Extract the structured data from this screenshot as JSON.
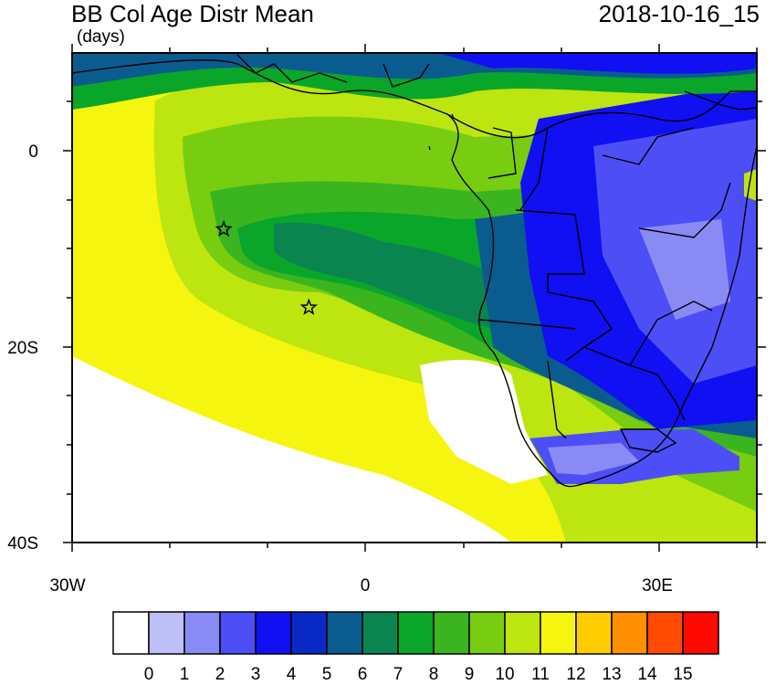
{
  "header": {
    "title": "BB Col Age Distr Mean",
    "units": "(days)",
    "datetime": "2018-10-16_15"
  },
  "axes": {
    "x_ticks": [
      "30W",
      "0",
      "30E"
    ],
    "y_ticks": [
      "0",
      "20S",
      "40S"
    ]
  },
  "colorbar": {
    "labels": [
      "0",
      "1",
      "2",
      "3",
      "4",
      "5",
      "6",
      "7",
      "8",
      "9",
      "10",
      "11",
      "12",
      "13",
      "14",
      "15"
    ],
    "colors": [
      "#ffffff",
      "#bfbff7",
      "#8a8af5",
      "#4e4ef7",
      "#1010f2",
      "#0a2ac8",
      "#0a5c8f",
      "#0a8550",
      "#0aa62a",
      "#3ab520",
      "#78cd10",
      "#bde510",
      "#f5f510",
      "#ffcc00",
      "#ff8f00",
      "#ff4a00",
      "#ff0a00"
    ]
  },
  "markers": [
    {
      "name": "star-marker-north",
      "lon": -14.5,
      "lat": -8.0
    },
    {
      "name": "star-marker-south",
      "lon": -5.8,
      "lat": -16.0
    }
  ]
}
